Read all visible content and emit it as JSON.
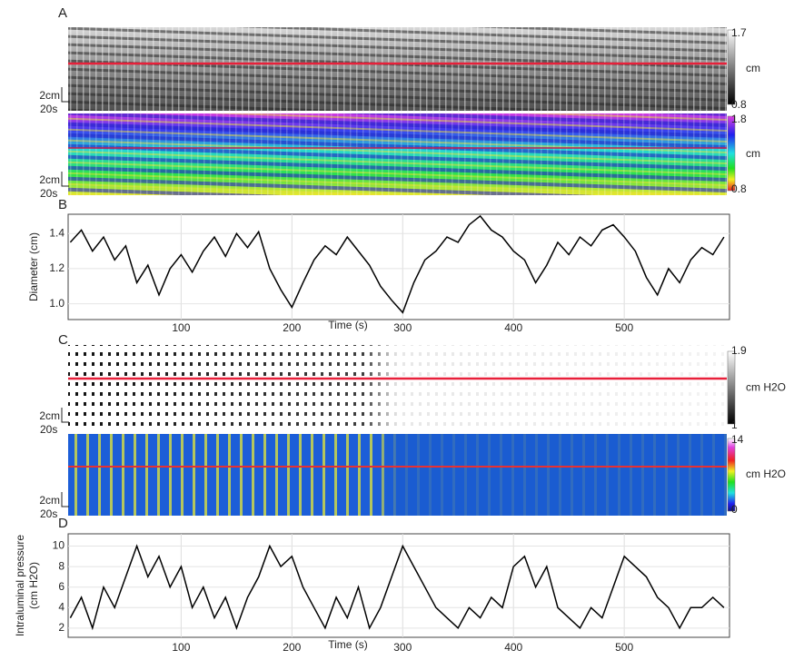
{
  "panel_labels": [
    "A",
    "B",
    "C",
    "D"
  ],
  "heatmaps": [
    {
      "colorbar_ticks": [
        1.7,
        0.8
      ],
      "colorbar_unit": "cm",
      "scale_y": "2cm",
      "scale_x": "20s"
    },
    {
      "colorbar_ticks": [
        1.8,
        0.8
      ],
      "colorbar_unit": "cm",
      "scale_y": "2cm",
      "scale_x": "20s"
    },
    {
      "colorbar_ticks": [
        1.9,
        1
      ],
      "colorbar_unit": "cm H2O",
      "scale_y": "2cm",
      "scale_x": "20s"
    },
    {
      "colorbar_ticks": [
        14,
        0
      ],
      "colorbar_unit": "cm H2O",
      "scale_y": "2cm",
      "scale_x": "20s"
    }
  ],
  "chart_data": [
    {
      "type": "line",
      "ylabel": [
        "Diameter (cm)"
      ],
      "xlabel": "Time (s)",
      "color": "#000000",
      "grid": true,
      "x": [
        0,
        10,
        20,
        30,
        40,
        50,
        60,
        70,
        80,
        90,
        100,
        110,
        120,
        130,
        140,
        150,
        160,
        170,
        180,
        190,
        200,
        210,
        220,
        230,
        240,
        250,
        260,
        270,
        280,
        290,
        300,
        310,
        320,
        330,
        340,
        350,
        360,
        370,
        380,
        390,
        400,
        410,
        420,
        430,
        440,
        450,
        460,
        470,
        480,
        490,
        500,
        510,
        520,
        530,
        540,
        550,
        560,
        570,
        580,
        590
      ],
      "values": [
        1.35,
        1.42,
        1.3,
        1.38,
        1.25,
        1.33,
        1.12,
        1.22,
        1.05,
        1.2,
        1.28,
        1.18,
        1.3,
        1.38,
        1.27,
        1.4,
        1.32,
        1.41,
        1.2,
        1.08,
        0.98,
        1.12,
        1.25,
        1.33,
        1.28,
        1.38,
        1.3,
        1.22,
        1.1,
        1.02,
        0.95,
        1.12,
        1.25,
        1.3,
        1.38,
        1.35,
        1.45,
        1.5,
        1.42,
        1.38,
        1.3,
        1.25,
        1.12,
        1.22,
        1.35,
        1.28,
        1.38,
        1.33,
        1.42,
        1.45,
        1.38,
        1.3,
        1.15,
        1.05,
        1.2,
        1.12,
        1.25,
        1.32,
        1.28,
        1.38
      ],
      "xlim": [
        -2,
        595
      ],
      "ylim": [
        0.91,
        1.51
      ],
      "xticks": [
        100,
        200,
        300,
        400,
        500
      ],
      "yticks": [
        {
          "value": 1.0,
          "label": "1.0"
        },
        1.2,
        1.4
      ]
    },
    {
      "type": "line",
      "ylabel": [
        "Intraluminal pressure",
        "(cm H2O)"
      ],
      "xlabel": "Time (s)",
      "color": "#000000",
      "grid": true,
      "x": [
        0,
        10,
        20,
        30,
        40,
        50,
        60,
        70,
        80,
        90,
        100,
        110,
        120,
        130,
        140,
        150,
        160,
        170,
        180,
        190,
        200,
        210,
        220,
        230,
        240,
        250,
        260,
        270,
        280,
        290,
        300,
        310,
        320,
        330,
        340,
        350,
        360,
        370,
        380,
        390,
        400,
        410,
        420,
        430,
        440,
        450,
        460,
        470,
        480,
        490,
        500,
        510,
        520,
        530,
        540,
        550,
        560,
        570,
        580,
        590
      ],
      "values": [
        3,
        5,
        2,
        6,
        4,
        7,
        10,
        7,
        9,
        6,
        8,
        4,
        6,
        3,
        5,
        2,
        5,
        7,
        10,
        8,
        9,
        6,
        4,
        2,
        5,
        3,
        6,
        2,
        4,
        7,
        10,
        8,
        6,
        4,
        3,
        2,
        4,
        3,
        5,
        4,
        8,
        9,
        6,
        8,
        4,
        3,
        2,
        4,
        3,
        6,
        9,
        8,
        7,
        5,
        4,
        2,
        4,
        4,
        5,
        4
      ],
      "xlim": [
        -2,
        595
      ],
      "ylim": [
        1.1,
        11.2
      ],
      "xticks": [
        100,
        200,
        300,
        400,
        500
      ],
      "yticks": [
        2,
        4,
        6,
        8,
        10
      ]
    }
  ]
}
